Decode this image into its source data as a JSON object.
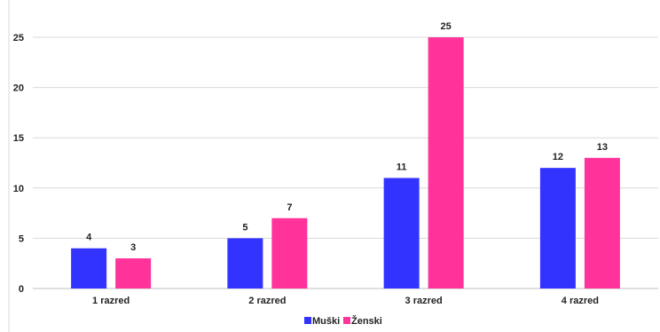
{
  "chart_data": {
    "type": "bar",
    "categories": [
      "1 razred",
      "2 razred",
      "3 razred",
      "4 razred"
    ],
    "series": [
      {
        "name": "Muški",
        "values": [
          4,
          5,
          11,
          12
        ],
        "color": "#3333ff"
      },
      {
        "name": "Ženski",
        "values": [
          3,
          7,
          25,
          13
        ],
        "color": "#ff3399"
      }
    ],
    "yticks": [
      "0",
      "5",
      "10",
      "15",
      "20",
      "25"
    ],
    "ylim": [
      0,
      25
    ],
    "grid": true,
    "legend_position": "bottom"
  }
}
